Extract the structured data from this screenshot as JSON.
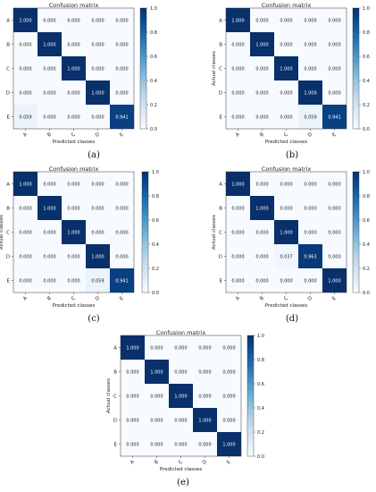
{
  "figure": {
    "panels": [
      "(a)",
      "(b)",
      "(c)",
      "(d)",
      "(e)"
    ]
  },
  "chart_data": [
    {
      "type": "heatmap",
      "title": "Confusion matrix",
      "xlabel": "Predicted classes",
      "ylabel": "",
      "x_categories": [
        "A",
        "B",
        "C",
        "D",
        "E"
      ],
      "y_categories": [
        "A",
        "B",
        "C",
        "D",
        "E"
      ],
      "values": [
        [
          1.0,
          0.0,
          0.0,
          0.0,
          0.0
        ],
        [
          0.0,
          1.0,
          0.0,
          0.0,
          0.0
        ],
        [
          0.0,
          0.0,
          1.0,
          0.0,
          0.0
        ],
        [
          0.0,
          0.0,
          0.0,
          1.0,
          0.0
        ],
        [
          0.059,
          0.0,
          0.0,
          0.0,
          0.941
        ]
      ],
      "colorbar": {
        "range": [
          0,
          1
        ],
        "ticks": [
          "1.0",
          "0.8",
          "0.6",
          "0.4",
          "0.2",
          "0.0"
        ]
      },
      "colormap": {
        "low": "#f7fbff",
        "high": "#08306b"
      },
      "grid": false,
      "legend": "colorbar right"
    },
    {
      "type": "heatmap",
      "title": "Confusion matrix",
      "xlabel": "Predicted classes",
      "ylabel": "Actual classes",
      "x_categories": [
        "A",
        "B",
        "C",
        "D",
        "E"
      ],
      "y_categories": [
        "A",
        "B",
        "C",
        "D",
        "E"
      ],
      "values": [
        [
          1.0,
          0.0,
          0.0,
          0.0,
          0.0
        ],
        [
          0.0,
          1.0,
          0.0,
          0.0,
          0.0
        ],
        [
          0.0,
          0.0,
          1.0,
          0.0,
          0.0
        ],
        [
          0.0,
          0.0,
          0.0,
          1.0,
          0.0
        ],
        [
          0.0,
          0.0,
          0.0,
          0.059,
          0.941
        ]
      ],
      "colorbar": {
        "range": [
          0,
          1
        ],
        "ticks": [
          "1.0",
          "0.8",
          "0.6",
          "0.4",
          "0.2",
          "0.0"
        ]
      },
      "colormap": {
        "low": "#f7fbff",
        "high": "#08306b"
      },
      "grid": false,
      "legend": "colorbar right"
    },
    {
      "type": "heatmap",
      "title": "Confusion matrix",
      "xlabel": "Predicted classes",
      "ylabel": "Actual classes",
      "x_categories": [
        "A",
        "B",
        "C",
        "D",
        "E"
      ],
      "y_categories": [
        "A",
        "B",
        "C",
        "D",
        "E"
      ],
      "values": [
        [
          1.0,
          0.0,
          0.0,
          0.0,
          0.0
        ],
        [
          0.0,
          1.0,
          0.0,
          0.0,
          0.0
        ],
        [
          0.0,
          0.0,
          1.0,
          0.0,
          0.0
        ],
        [
          0.0,
          0.0,
          0.0,
          1.0,
          0.0
        ],
        [
          0.0,
          0.0,
          0.0,
          0.059,
          0.941
        ]
      ],
      "colorbar": {
        "range": [
          0,
          1
        ],
        "ticks": [
          "1.0",
          "0.8",
          "0.6",
          "0.4",
          "0.2",
          "0.0"
        ]
      },
      "colormap": {
        "low": "#f7fbff",
        "high": "#08306b"
      },
      "grid": false,
      "legend": "colorbar right"
    },
    {
      "type": "heatmap",
      "title": "Confusion matrix",
      "xlabel": "Predicted classes",
      "ylabel": "Actual classes",
      "x_categories": [
        "A",
        "B",
        "C",
        "D",
        "E"
      ],
      "y_categories": [
        "A",
        "B",
        "C",
        "D",
        "E"
      ],
      "values": [
        [
          1.0,
          0.0,
          0.0,
          0.0,
          0.0
        ],
        [
          0.0,
          1.0,
          0.0,
          0.0,
          0.0
        ],
        [
          0.0,
          0.0,
          1.0,
          0.0,
          0.0
        ],
        [
          0.0,
          0.0,
          0.037,
          0.963,
          0.0
        ],
        [
          0.0,
          0.0,
          0.0,
          0.0,
          1.0
        ]
      ],
      "colorbar": {
        "range": [
          0,
          1
        ],
        "ticks": [
          "1.0",
          "0.8",
          "0.6",
          "0.4",
          "0.2",
          "0.0"
        ]
      },
      "colormap": {
        "low": "#f7fbff",
        "high": "#08306b"
      },
      "grid": false,
      "legend": "colorbar right"
    },
    {
      "type": "heatmap",
      "title": "Confusion matrix",
      "xlabel": "Predicted classes",
      "ylabel": "Actual classes",
      "x_categories": [
        "A",
        "B",
        "C",
        "D",
        "E"
      ],
      "y_categories": [
        "A",
        "B",
        "C",
        "D",
        "E"
      ],
      "values": [
        [
          1.0,
          0.0,
          0.0,
          0.0,
          0.0
        ],
        [
          0.0,
          1.0,
          0.0,
          0.0,
          0.0
        ],
        [
          0.0,
          0.0,
          1.0,
          0.0,
          0.0
        ],
        [
          0.0,
          0.0,
          0.0,
          1.0,
          0.0
        ],
        [
          0.0,
          0.0,
          0.0,
          0.0,
          1.0
        ]
      ],
      "colorbar": {
        "range": [
          0,
          1
        ],
        "ticks": [
          "1.0",
          "0.8",
          "0.6",
          "0.4",
          "0.2",
          "0.0"
        ]
      },
      "colormap": {
        "low": "#f7fbff",
        "high": "#08306b"
      },
      "grid": false,
      "legend": "colorbar right"
    }
  ]
}
